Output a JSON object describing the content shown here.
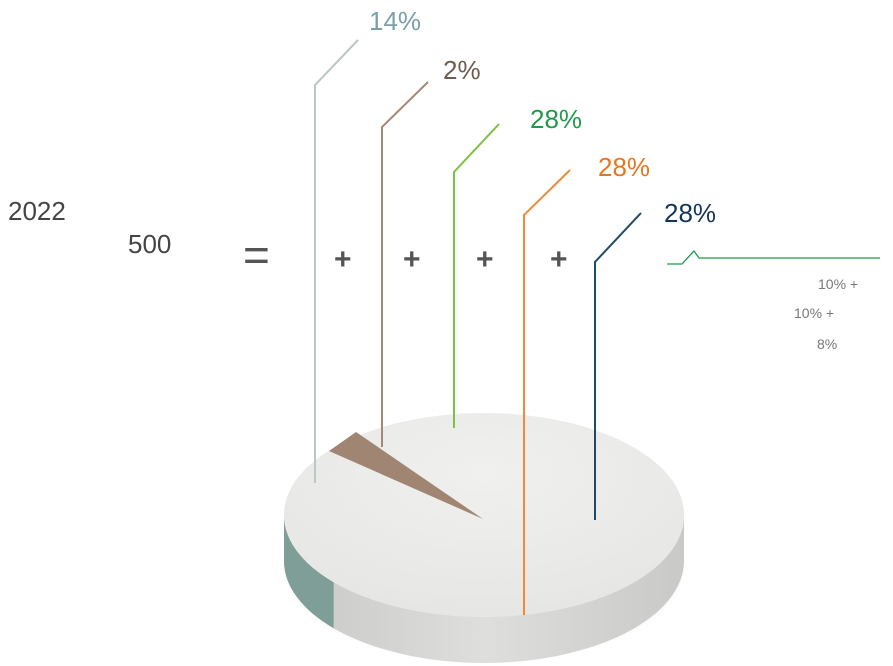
{
  "header": {
    "year": "2022",
    "total": "500",
    "equals": "=",
    "plus": [
      "+",
      "+",
      "+",
      "+"
    ]
  },
  "notes": [
    "10% +",
    "10% +",
    "8%"
  ],
  "chart_data": {
    "type": "pie",
    "labels": [
      "14%",
      "2%",
      "28%",
      "28%",
      "28%"
    ],
    "values": [
      14,
      2,
      28,
      28,
      28
    ],
    "colors": [
      "#7A9EAA",
      "#6E5B4F",
      "#1F9A4A",
      "#E8761E",
      "#13355A"
    ],
    "leader_colors": [
      "#B9C8C6",
      "#A48A76",
      "#7CC242",
      "#EE8A38",
      "#1E4A6A"
    ]
  }
}
